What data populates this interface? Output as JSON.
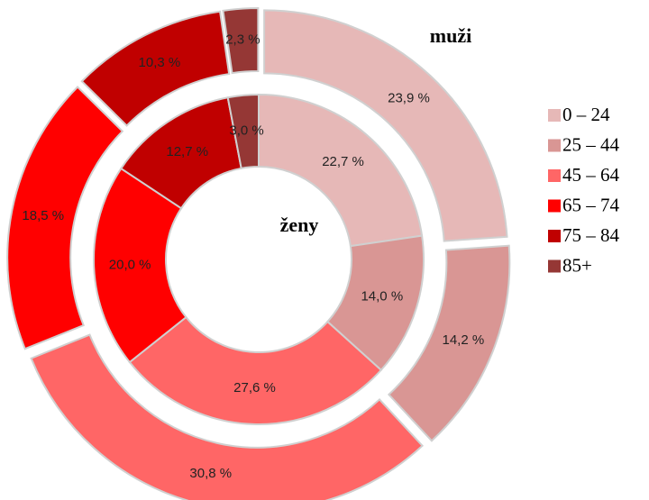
{
  "chart_data": {
    "type": "donut",
    "categories": [
      "0 – 24",
      "25 – 44",
      "45 – 64",
      "65 – 74",
      "75 – 84",
      "85+"
    ],
    "colors": [
      "#e6b8b7",
      "#d99694",
      "#ff6666",
      "#ff0000",
      "#c00000",
      "#953735"
    ],
    "series": [
      {
        "name": "muži",
        "values": [
          23.9,
          14.2,
          30.8,
          18.5,
          10.3,
          2.3
        ],
        "value_labels": [
          "23,9 %",
          "14,2 %",
          "30,8 %",
          "18,5 %",
          "10,3 %",
          "2,3 %"
        ]
      },
      {
        "name": "ženy",
        "values": [
          22.7,
          14.0,
          27.6,
          20.0,
          12.7,
          3.0
        ],
        "value_labels": [
          "22,7 %",
          "14,0 %",
          "27,6 %",
          "20,0 %",
          "12,7 %",
          "3,0 %"
        ]
      }
    ],
    "legend": "right"
  }
}
